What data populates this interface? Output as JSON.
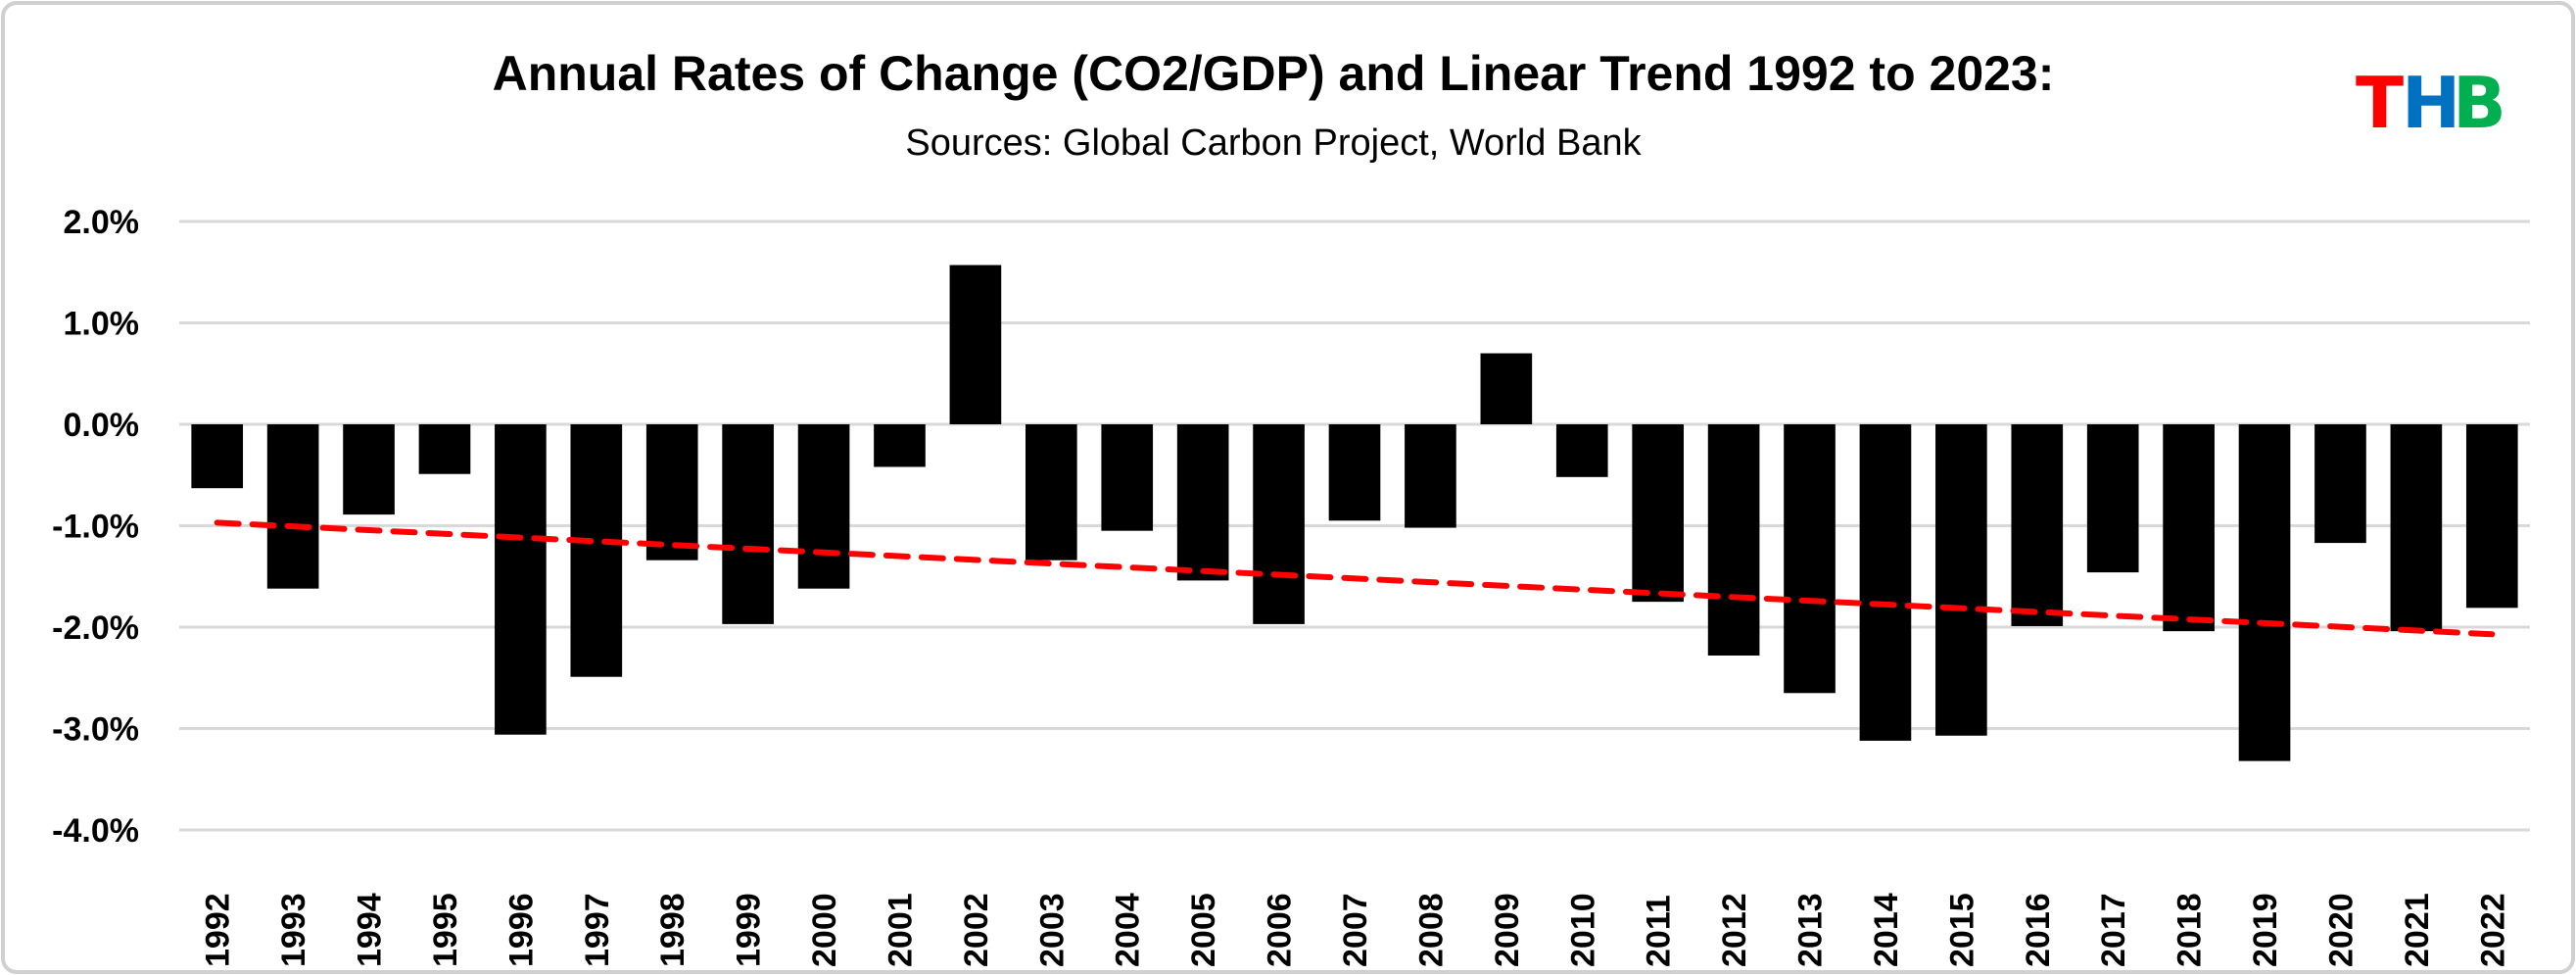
{
  "chart_data": {
    "type": "bar",
    "title": "Annual Rates of Change (CO2/GDP) and Linear Trend 1992 to 2023:",
    "subtitle": "Sources: Global Carbon Project, World Bank",
    "xlabel": "",
    "ylabel": "",
    "ylim": [
      -4.0,
      2.0
    ],
    "yticks": [
      2.0,
      1.0,
      0.0,
      -1.0,
      -2.0,
      -3.0,
      -4.0
    ],
    "ytick_labels": [
      "2.0%",
      "1.0%",
      "0.0%",
      "-1.0%",
      "-2.0%",
      "-3.0%",
      "-4.0%"
    ],
    "grid": true,
    "categories": [
      "1992",
      "1993",
      "1994",
      "1995",
      "1996",
      "1997",
      "1998",
      "1999",
      "2000",
      "2001",
      "2002",
      "2003",
      "2004",
      "2005",
      "2006",
      "2007",
      "2008",
      "2009",
      "2010",
      "2011",
      "2012",
      "2013",
      "2014",
      "2015",
      "2016",
      "2017",
      "2018",
      "2019",
      "2020",
      "2021",
      "2022"
    ],
    "series": [
      {
        "name": "Annual rate of change (CO2/GDP), %",
        "color": "#000000",
        "values": [
          -0.63,
          -1.62,
          -0.89,
          -0.49,
          -3.06,
          -2.49,
          -1.34,
          -1.97,
          -1.62,
          -0.42,
          1.57,
          -1.34,
          -1.05,
          -1.54,
          -1.97,
          -0.95,
          -1.02,
          0.7,
          -0.52,
          -1.75,
          -2.28,
          -2.65,
          -3.12,
          -3.07,
          -1.99,
          -1.46,
          -2.04,
          -3.32,
          -1.17,
          -2.04,
          -1.81
        ]
      },
      {
        "name": "Linear trend",
        "type": "line",
        "style": "dashed",
        "color": "#ff0000",
        "start": -0.97,
        "end": -2.07
      }
    ]
  },
  "logo": {
    "letters": [
      "T",
      "H",
      "B"
    ],
    "colors": [
      "#ff0000",
      "#0070c0",
      "#00b050"
    ]
  }
}
